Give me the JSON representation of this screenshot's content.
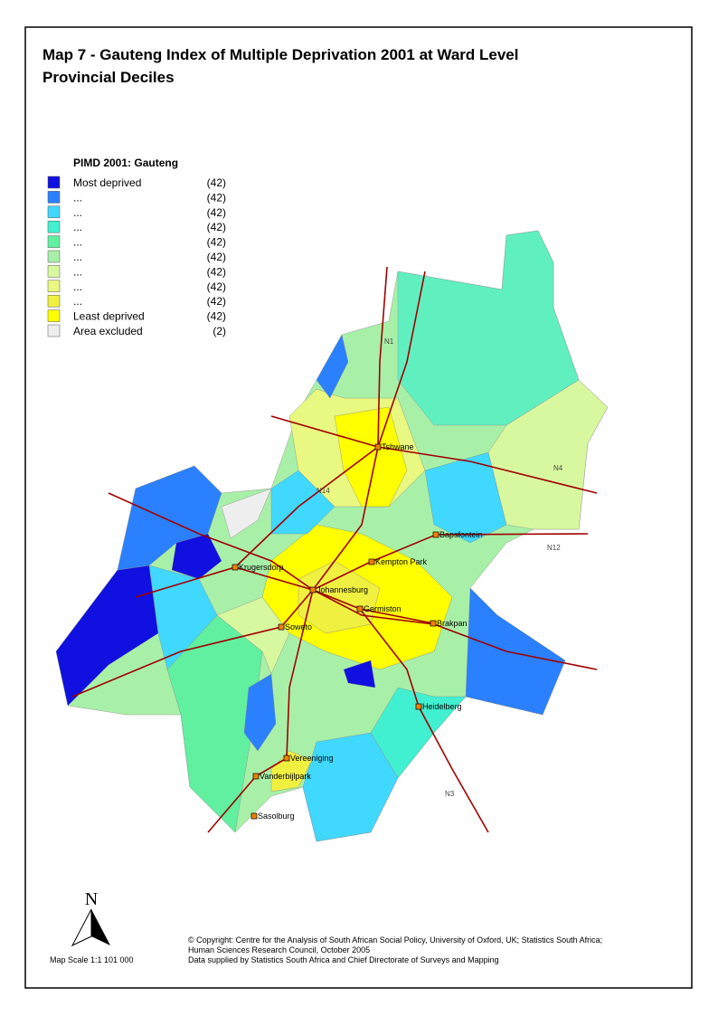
{
  "title_lines": [
    "Map 7 - Gauteng Index of Multiple Deprivation 2001 at Ward Level",
    "Provincial Deciles"
  ],
  "legend": {
    "title": "PIMD 2001: Gauteng",
    "items": [
      {
        "label": "Most deprived",
        "count": "(42)"
      },
      {
        "label": "...",
        "count": "(42)"
      },
      {
        "label": "...",
        "count": "(42)"
      },
      {
        "label": "...",
        "count": "(42)"
      },
      {
        "label": "...",
        "count": "(42)"
      },
      {
        "label": "...",
        "count": "(42)"
      },
      {
        "label": "...",
        "count": "(42)"
      },
      {
        "label": "...",
        "count": "(42)"
      },
      {
        "label": "...",
        "count": "(42)"
      },
      {
        "label": "Least deprived",
        "count": "(42)"
      },
      {
        "label": "Area excluded",
        "count": "(2)"
      }
    ]
  },
  "places": [
    "Tshwane",
    "Bapsfontein",
    "Krugersdorp",
    "Kempton Park",
    "Johannesburg",
    "Germiston",
    "Brakpan",
    "Soweto",
    "Heidelberg",
    "Vereeniging",
    "Vanderbijlpark",
    "Sasolburg"
  ],
  "roads": [
    "N1",
    "N4",
    "N14",
    "N12",
    "N3"
  ],
  "north": "N",
  "scale": "Map Scale 1:1 101 000",
  "credits": [
    "© Copyright: Centre for the Analysis of South African Social Policy, University of Oxford, UK; Statistics South Africa;",
    "Human Sciences Research Council,  October 2005",
    "Data supplied by Statistics South Africa and Chief Directorate of Surveys and Mapping"
  ]
}
